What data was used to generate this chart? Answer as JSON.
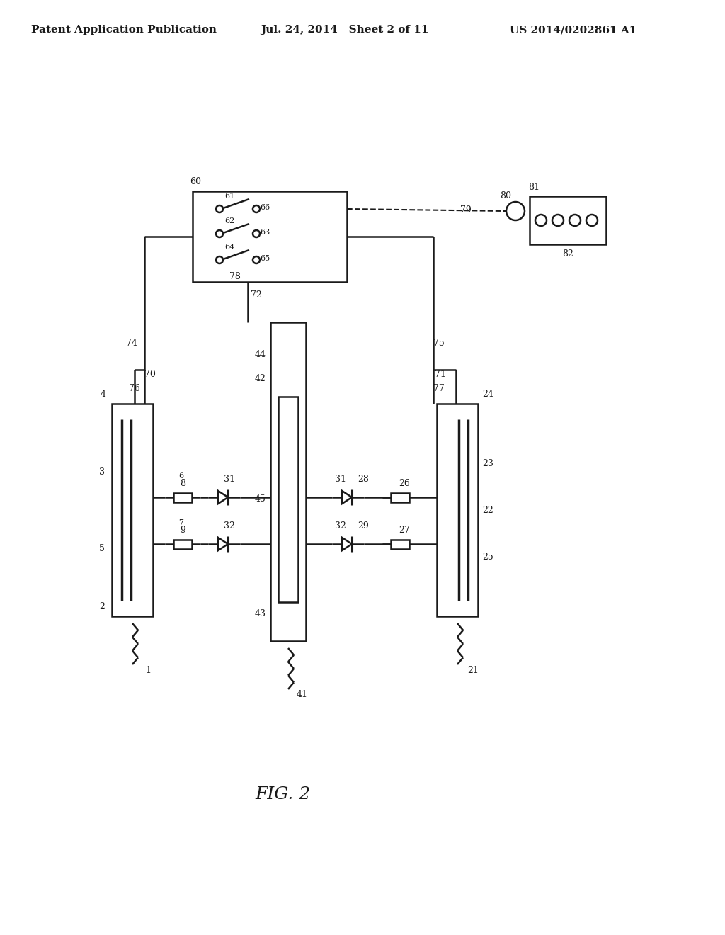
{
  "bg_color": "#ffffff",
  "lc": "#1a1a1a",
  "header_left": "Patent Application Publication",
  "header_mid": "Jul. 24, 2014   Sheet 2 of 11",
  "header_right": "US 2014/0202861 A1",
  "fig_label": "FIG. 2",
  "fig_w": 10.24,
  "fig_h": 13.2,
  "dpi": 100
}
